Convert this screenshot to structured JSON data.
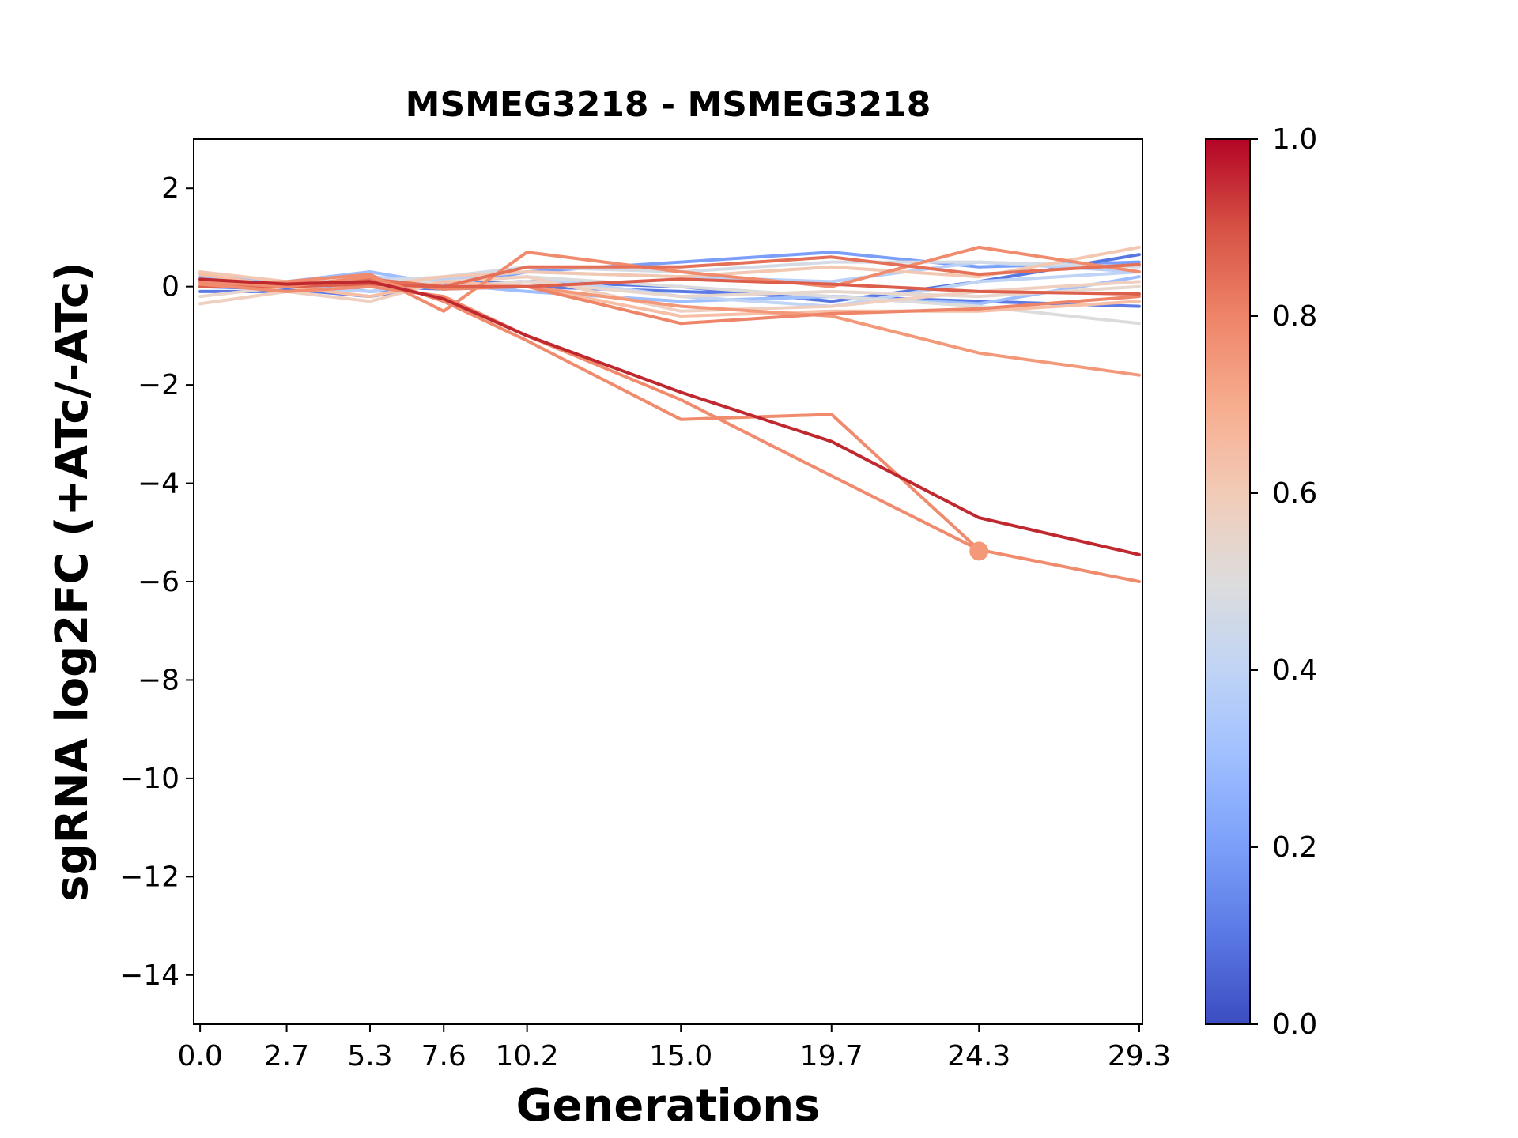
{
  "chart_data": {
    "type": "line",
    "title": "MSMEG3218 - MSMEG3218",
    "xlabel": "Generations",
    "ylabel": "sgRNA log2FC (+ATc/-ATc)",
    "x": [
      0.0,
      2.7,
      5.3,
      7.6,
      10.2,
      15.0,
      19.7,
      24.3,
      29.3
    ],
    "x_tick_labels": [
      "0.0",
      "2.7",
      "5.3",
      "7.6",
      "10.2",
      "15.0",
      "19.7",
      "24.3",
      "29.3"
    ],
    "xlim": [
      -0.2,
      29.4
    ],
    "ylim": [
      -15,
      3
    ],
    "y_ticks": [
      2,
      0,
      -2,
      -4,
      -6,
      -8,
      -10,
      -12,
      -14
    ],
    "y_tick_labels": [
      "2",
      "0",
      "−2",
      "−4",
      "−6",
      "−8",
      "−10",
      "−12",
      "−14"
    ],
    "grid": false,
    "colormap": "coolwarm",
    "colorbar": {
      "range": [
        0.0,
        1.0
      ],
      "ticks": [
        0.0,
        0.2,
        0.4,
        0.6,
        0.8,
        1.0
      ],
      "tick_labels": [
        "0.0",
        "0.2",
        "0.4",
        "0.6",
        "0.8",
        "1.0"
      ]
    },
    "series": [
      {
        "color": "#7b9ff9",
        "values": [
          0.1,
          0.05,
          -0.1,
          0.0,
          0.3,
          0.5,
          0.7,
          0.4,
          0.5
        ]
      },
      {
        "color": "#5977e3",
        "values": [
          0.0,
          -0.05,
          -0.2,
          0.05,
          0.1,
          0.0,
          -0.3,
          0.1,
          0.65
        ]
      },
      {
        "color": "#5b7ae5",
        "values": [
          -0.1,
          -0.1,
          0.0,
          -0.05,
          0.0,
          -0.1,
          -0.2,
          -0.3,
          -0.4
        ]
      },
      {
        "color": "#9ebeff",
        "values": [
          0.2,
          0.1,
          0.3,
          0.05,
          -0.1,
          -0.3,
          -0.2,
          -0.35,
          0.2
        ]
      },
      {
        "color": "#c0d4f5",
        "values": [
          0.0,
          0.0,
          0.2,
          0.1,
          0.2,
          -0.2,
          -0.4,
          0.1,
          0.3
        ]
      },
      {
        "color": "#b9d0f9",
        "values": [
          0.1,
          0.0,
          -0.1,
          0.15,
          0.3,
          0.2,
          0.1,
          0.5,
          0.3
        ]
      },
      {
        "color": "#dddcdc",
        "values": [
          0.15,
          0.05,
          0.0,
          0.1,
          0.2,
          0.0,
          -0.2,
          -0.4,
          -0.75
        ]
      },
      {
        "color": "#d5dbe5",
        "values": [
          0.0,
          0.1,
          0.1,
          0.2,
          0.4,
          0.3,
          0.5,
          0.5,
          0.4
        ]
      },
      {
        "color": "#e7d7ce",
        "values": [
          -0.2,
          0.0,
          0.05,
          0.0,
          0.1,
          -0.2,
          -0.1,
          -0.2,
          0.0
        ]
      },
      {
        "color": "#efcfbf",
        "values": [
          -0.35,
          -0.1,
          -0.3,
          0.1,
          0.2,
          -0.5,
          -0.4,
          -0.1,
          0.1
        ]
      },
      {
        "color": "#f3c8b2",
        "values": [
          0.3,
          0.1,
          0.0,
          0.2,
          0.3,
          0.2,
          0.4,
          0.2,
          0.8
        ]
      },
      {
        "color": "#f6bfa6",
        "values": [
          0.25,
          0.0,
          -0.2,
          0.1,
          0.0,
          -0.6,
          -0.5,
          -0.5,
          -0.3
        ]
      },
      {
        "color": "#f4987a",
        "values": [
          0.1,
          0.0,
          0.1,
          0.0,
          0.0,
          -0.4,
          -0.6,
          -1.35,
          -1.8
        ]
      },
      {
        "color": "#f08b6e",
        "values": [
          0.05,
          0.1,
          0.25,
          -0.5,
          0.7,
          0.3,
          0.0,
          0.8,
          0.3
        ]
      },
      {
        "color": "#ee8468",
        "values": [
          0.0,
          0.0,
          0.1,
          -0.05,
          0.0,
          -0.75,
          -0.55,
          -0.45,
          -0.2
        ]
      },
      {
        "color": "#e57058",
        "values": [
          0.1,
          0.05,
          0.15,
          0.0,
          0.4,
          0.4,
          0.6,
          0.25,
          0.45
        ]
      },
      {
        "color": "#dd5f4b",
        "values": [
          0.0,
          0.0,
          0.05,
          0.0,
          0.0,
          0.15,
          0.05,
          -0.1,
          -0.15
        ]
      },
      {
        "color": "#f08b6e",
        "values": [
          0.1,
          0.0,
          0.2,
          -0.3,
          -1.1,
          -2.7,
          -2.6,
          -5.35,
          -6.0
        ]
      },
      {
        "color": "#f08b6e",
        "values": [
          0.05,
          -0.1,
          0.0,
          -0.2,
          -1.0,
          -2.3,
          -3.85,
          -5.35,
          null
        ]
      },
      {
        "color": "#c0282f",
        "values": [
          0.15,
          0.05,
          0.1,
          -0.25,
          -1.0,
          -2.15,
          -3.15,
          -4.7,
          -5.45
        ]
      }
    ],
    "highlight_point": {
      "x": 24.3,
      "y": -5.38,
      "color": "#f4987a"
    }
  }
}
